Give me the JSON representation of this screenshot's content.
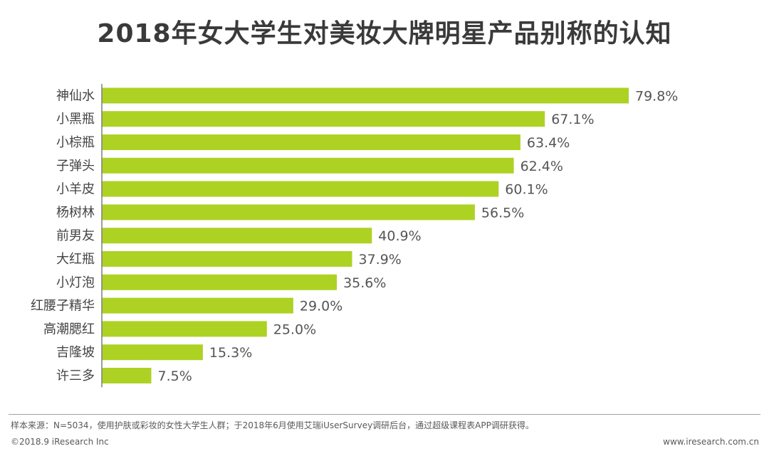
{
  "header": {
    "title": "2018年女大学生对美妆大牌明星产品别称的认知"
  },
  "chart_data": {
    "type": "bar",
    "orientation": "horizontal",
    "title": "2018年女大学生对美妆大牌明星产品别称的认知",
    "categories": [
      "神仙水",
      "小黑瓶",
      "小棕瓶",
      "子弹头",
      "小羊皮",
      "杨树林",
      "前男友",
      "大红瓶",
      "小灯泡",
      "红腰子精华",
      "高潮腮红",
      "吉隆坡",
      "许三多"
    ],
    "values": [
      79.8,
      67.1,
      63.4,
      62.4,
      60.1,
      56.5,
      40.9,
      37.9,
      35.6,
      29.0,
      25.0,
      15.3,
      7.5
    ],
    "value_labels": [
      "79.8%",
      "67.1%",
      "63.4%",
      "62.4%",
      "60.1%",
      "56.5%",
      "40.9%",
      "37.9%",
      "35.6%",
      "29.0%",
      "25.0%",
      "15.3%",
      "7.5%"
    ],
    "xlim": [
      0,
      100
    ],
    "unit": "%",
    "bar_color": "#add224",
    "grid": false
  },
  "footer": {
    "source": "样本来源：N=5034，使用护肤或彩妆的女性大学生人群；于2018年6月使用艾瑞iUserSurvey调研后台，通过超级课程表APP调研获得。",
    "copyright": "©2018.9 iResearch Inc",
    "website": "www.iresearch.com.cn"
  }
}
